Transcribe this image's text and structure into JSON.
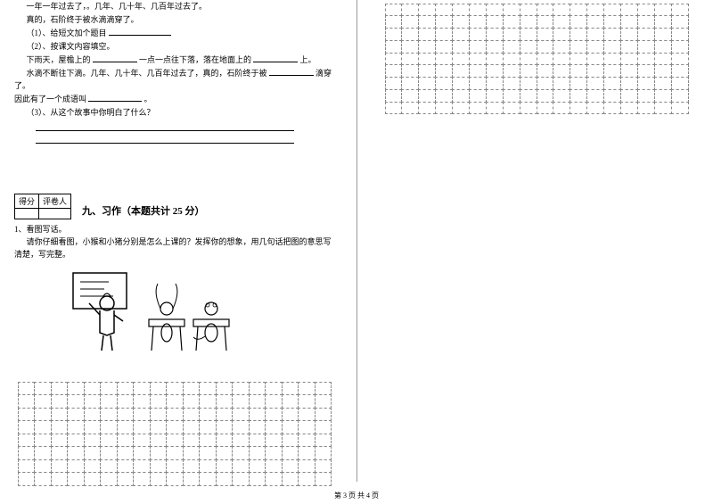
{
  "passage": {
    "p1": "一年一年过去了，。几年、几十年、几百年过去了。",
    "p2": "真的，石阶终于被水滴滴穿了。",
    "q1_label": "（1）、给短文加个题目",
    "q2_label": "（2）、按课文内容填空。",
    "fill_line1_a": "下雨天，屋檐上的",
    "fill_line1_b": "一点一点往下落，落在地面上的",
    "fill_line1_c": "上。",
    "fill_line2_a": "水滴不断往下滴。几年、几十年、几百年过去了，真的，石阶终于被",
    "fill_line2_b": "滴穿了。",
    "fill_line3_a": "因此有了一个成语叫",
    "fill_line3_c": "。",
    "q3_label": "（3）、从这个故事中你明白了什么？"
  },
  "score_table": {
    "c1": "得分",
    "c2": "评卷人"
  },
  "section9": {
    "title": "九、习作（本题共计 25 分）",
    "q1_num": "1、看图写话。",
    "q1_text_a": "请你仔细看图，小猴和小猪分别是怎么上课的？发挥你的想象，用几句话把图的意思写",
    "q1_text_b": "清楚，写完整。"
  },
  "footer": "第 3 页  共 4 页",
  "blanks": {
    "w50": 50,
    "w60": 60,
    "w40": 40,
    "w70": 70
  },
  "colors": {
    "text": "#000000",
    "grid_border": "#888888",
    "bg": "#ffffff"
  },
  "grids": {
    "left_cells": 152,
    "right_cells": 162
  }
}
